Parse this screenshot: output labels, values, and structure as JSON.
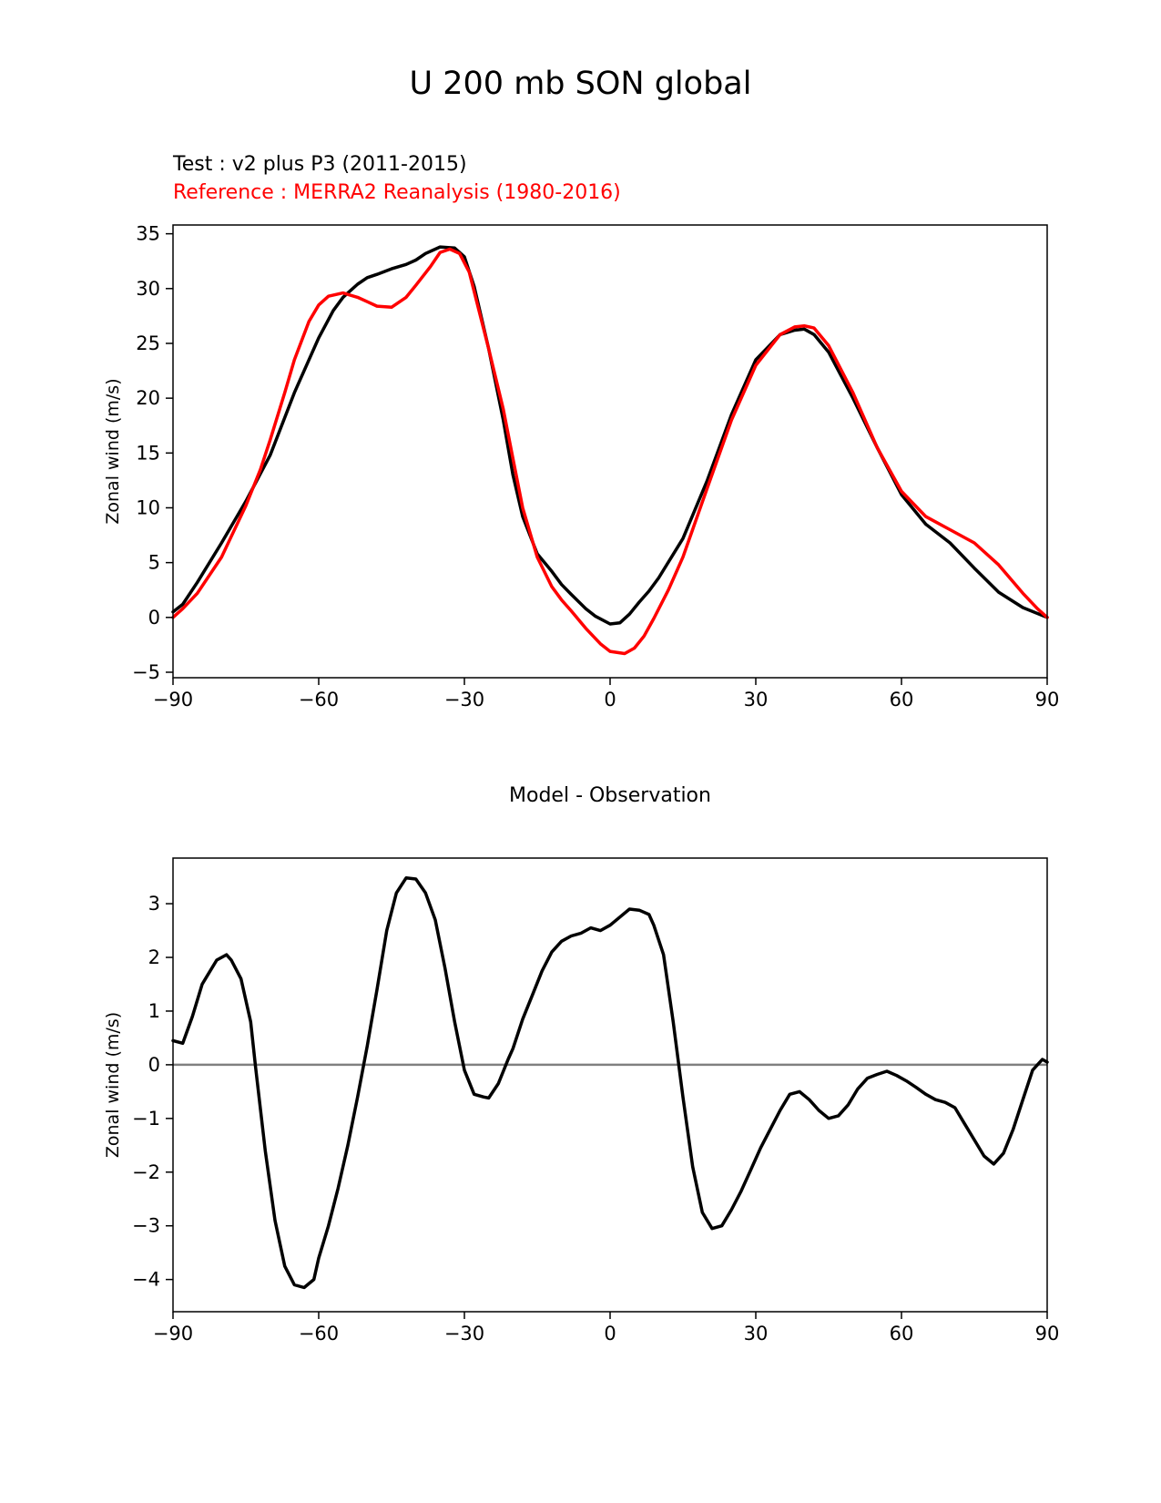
{
  "suptitle": "U 200 mb SON global",
  "chart_data": [
    {
      "type": "line",
      "test_label": "Test : v2 plus P3 (2011-2015)",
      "reference_label": "Reference : MERRA2 Reanalysis (1980-2016)",
      "ylabel": "Zonal wind (m/s)",
      "xlabel": "",
      "xlim": [
        -90,
        90
      ],
      "ylim": [
        -5.5,
        35.8
      ],
      "xticks": [
        -90,
        -60,
        -30,
        0,
        30,
        60,
        90
      ],
      "xtick_labels": [
        "−90",
        "−60",
        "−30",
        "0",
        "30",
        "60",
        "90"
      ],
      "yticks": [
        -5,
        0,
        5,
        10,
        15,
        20,
        25,
        30,
        35
      ],
      "ytick_labels": [
        "−5",
        "0",
        "5",
        "10",
        "15",
        "20",
        "25",
        "30",
        "35"
      ],
      "series": [
        {
          "name": "Test : v2 plus P3 (2011-2015)",
          "color": "#000000",
          "x": [
            -90,
            -88,
            -85,
            -80,
            -75,
            -70,
            -65,
            -60,
            -57,
            -55,
            -52,
            -50,
            -48,
            -45,
            -42,
            -40,
            -38,
            -35,
            -32,
            -30,
            -28,
            -25,
            -22,
            -20,
            -18,
            -15,
            -12,
            -10,
            -8,
            -5,
            -3,
            0,
            2,
            4,
            6,
            8,
            10,
            15,
            20,
            25,
            30,
            35,
            38,
            40,
            42,
            45,
            50,
            55,
            60,
            65,
            70,
            75,
            80,
            85,
            90
          ],
          "y": [
            0.5,
            1.2,
            3.2,
            6.8,
            10.6,
            14.8,
            20.5,
            25.5,
            28,
            29.2,
            30.4,
            31,
            31.3,
            31.8,
            32.2,
            32.6,
            33.2,
            33.8,
            33.7,
            32.9,
            30.2,
            24.5,
            18,
            13,
            9.2,
            5.8,
            4.2,
            3.0,
            2.1,
            0.8,
            0.1,
            -0.6,
            -0.5,
            0.3,
            1.4,
            2.4,
            3.6,
            7.2,
            12.5,
            18.5,
            23.5,
            25.8,
            26.2,
            26.3,
            25.8,
            24.2,
            20,
            15.5,
            11.2,
            8.5,
            6.8,
            4.5,
            2.3,
            0.9,
            0.0
          ]
        },
        {
          "name": "Reference : MERRA2 Reanalysis (1980-2016)",
          "color": "#ff0000",
          "x": [
            -90,
            -88,
            -85,
            -80,
            -75,
            -72,
            -70,
            -67,
            -65,
            -62,
            -60,
            -58,
            -55,
            -52,
            -50,
            -48,
            -45,
            -42,
            -40,
            -37,
            -35,
            -33,
            -31,
            -29,
            -27,
            -25,
            -22,
            -20,
            -18,
            -15,
            -12,
            -10,
            -8,
            -5,
            -2,
            0,
            3,
            5,
            7,
            9,
            12,
            15,
            20,
            25,
            30,
            35,
            38,
            40,
            42,
            45,
            50,
            55,
            60,
            65,
            70,
            75,
            80,
            85,
            88,
            90
          ],
          "y": [
            0,
            0.8,
            2.2,
            5.5,
            10.2,
            13.5,
            16.2,
            20.5,
            23.5,
            27,
            28.5,
            29.3,
            29.6,
            29.2,
            28.8,
            28.4,
            28.3,
            29.2,
            30.3,
            32,
            33.3,
            33.6,
            33.2,
            31.5,
            28,
            24.5,
            19,
            14.5,
            10,
            5.5,
            2.8,
            1.6,
            0.6,
            -1,
            -2.4,
            -3.1,
            -3.3,
            -2.8,
            -1.7,
            -0.1,
            2.5,
            5.5,
            11.8,
            18,
            23,
            25.8,
            26.5,
            26.6,
            26.4,
            24.8,
            20.5,
            15.5,
            11.5,
            9.2,
            8,
            6.8,
            4.8,
            2.2,
            0.8,
            0
          ]
        }
      ]
    },
    {
      "type": "line",
      "title": "Model - Observation",
      "ylabel": "Zonal wind (m/s)",
      "xlabel": "",
      "xlim": [
        -90,
        90
      ],
      "ylim": [
        -4.6,
        3.85
      ],
      "xticks": [
        -90,
        -60,
        -30,
        0,
        30,
        60,
        90
      ],
      "xtick_labels": [
        "−90",
        "−60",
        "−30",
        "0",
        "30",
        "60",
        "90"
      ],
      "yticks": [
        -4,
        -3,
        -2,
        -1,
        0,
        1,
        2,
        3
      ],
      "ytick_labels": [
        "−4",
        "−3",
        "−2",
        "−1",
        "0",
        "1",
        "2",
        "3"
      ],
      "zero_line_color": "#808080",
      "series": [
        {
          "name": "Model - Observation",
          "color": "#000000",
          "x": [
            -90,
            -88,
            -86,
            -84,
            -83,
            -81,
            -79,
            -78,
            -76,
            -74,
            -73,
            -71,
            -69,
            -67,
            -65,
            -63,
            -61,
            -60,
            -58,
            -56,
            -54,
            -52,
            -50,
            -48,
            -46,
            -44,
            -42,
            -40,
            -38,
            -36,
            -34,
            -32,
            -30,
            -28,
            -26,
            -25,
            -23,
            -21,
            -20,
            -18,
            -16,
            -14,
            -12,
            -10,
            -8,
            -6,
            -4,
            -2,
            0,
            2,
            4,
            6,
            8,
            9,
            11,
            13,
            15,
            17,
            19,
            21,
            23,
            25,
            27,
            29,
            31,
            33,
            35,
            37,
            39,
            41,
            43,
            45,
            47,
            49,
            51,
            53,
            55,
            57,
            59,
            61,
            63,
            65,
            67,
            69,
            71,
            73,
            75,
            77,
            79,
            81,
            83,
            85,
            87,
            89,
            90
          ],
          "y": [
            0.45,
            0.4,
            0.9,
            1.5,
            1.65,
            1.95,
            2.05,
            1.95,
            1.6,
            0.8,
            -0.05,
            -1.6,
            -2.9,
            -3.75,
            -4.1,
            -4.15,
            -4.0,
            -3.6,
            -3.0,
            -2.3,
            -1.5,
            -0.6,
            0.35,
            1.4,
            2.5,
            3.2,
            3.48,
            3.46,
            3.2,
            2.7,
            1.8,
            0.8,
            -0.1,
            -0.55,
            -0.6,
            -0.62,
            -0.35,
            0.1,
            0.3,
            0.85,
            1.3,
            1.75,
            2.1,
            2.3,
            2.4,
            2.45,
            2.55,
            2.5,
            2.6,
            2.75,
            2.9,
            2.88,
            2.8,
            2.6,
            2.05,
            0.8,
            -0.6,
            -1.9,
            -2.75,
            -3.05,
            -3.0,
            -2.7,
            -2.35,
            -1.95,
            -1.55,
            -1.2,
            -0.85,
            -0.55,
            -0.5,
            -0.65,
            -0.85,
            -1.0,
            -0.95,
            -0.75,
            -0.45,
            -0.25,
            -0.18,
            -0.12,
            -0.2,
            -0.3,
            -0.42,
            -0.55,
            -0.65,
            -0.7,
            -0.8,
            -1.1,
            -1.4,
            -1.7,
            -1.85,
            -1.65,
            -1.2,
            -0.65,
            -0.1,
            0.1,
            0.05
          ]
        }
      ]
    }
  ]
}
